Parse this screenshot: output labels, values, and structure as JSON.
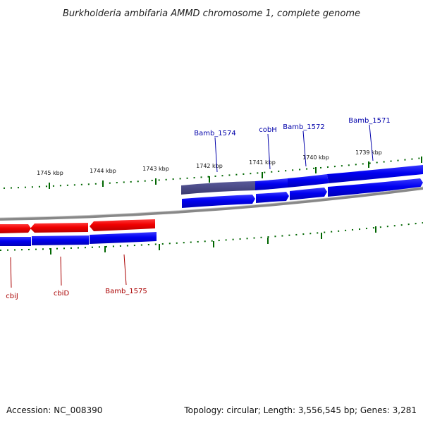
{
  "title": "Burkholderia ambifaria AMMD chromosome 1, complete genome",
  "footer": {
    "accession": "Accession: NC_008390",
    "topology": "Topology: circular; Length: 3,556,545 bp; Genes: 3,281"
  },
  "ticks": [
    {
      "label": "1745 kbp"
    },
    {
      "label": "1744 kbp"
    },
    {
      "label": "1743 kbp"
    },
    {
      "label": "1742 kbp"
    },
    {
      "label": "1741 kbp"
    },
    {
      "label": "1740 kbp"
    },
    {
      "label": "1739 kbp"
    }
  ],
  "gene_labels_top": [
    {
      "name": "Bamb_1574"
    },
    {
      "name": "cobH"
    },
    {
      "name": "Bamb_1572"
    },
    {
      "name": "Bamb_1571"
    }
  ],
  "gene_labels_bottom": [
    {
      "name": "cbiJ"
    },
    {
      "name": "cbiD"
    },
    {
      "name": "Bamb_1575"
    }
  ],
  "colors": {
    "forward": "#0000ee",
    "reverse": "#ee0000",
    "highlight": "#4a4a8a",
    "tick": "#006600",
    "backbone": "#888888"
  }
}
